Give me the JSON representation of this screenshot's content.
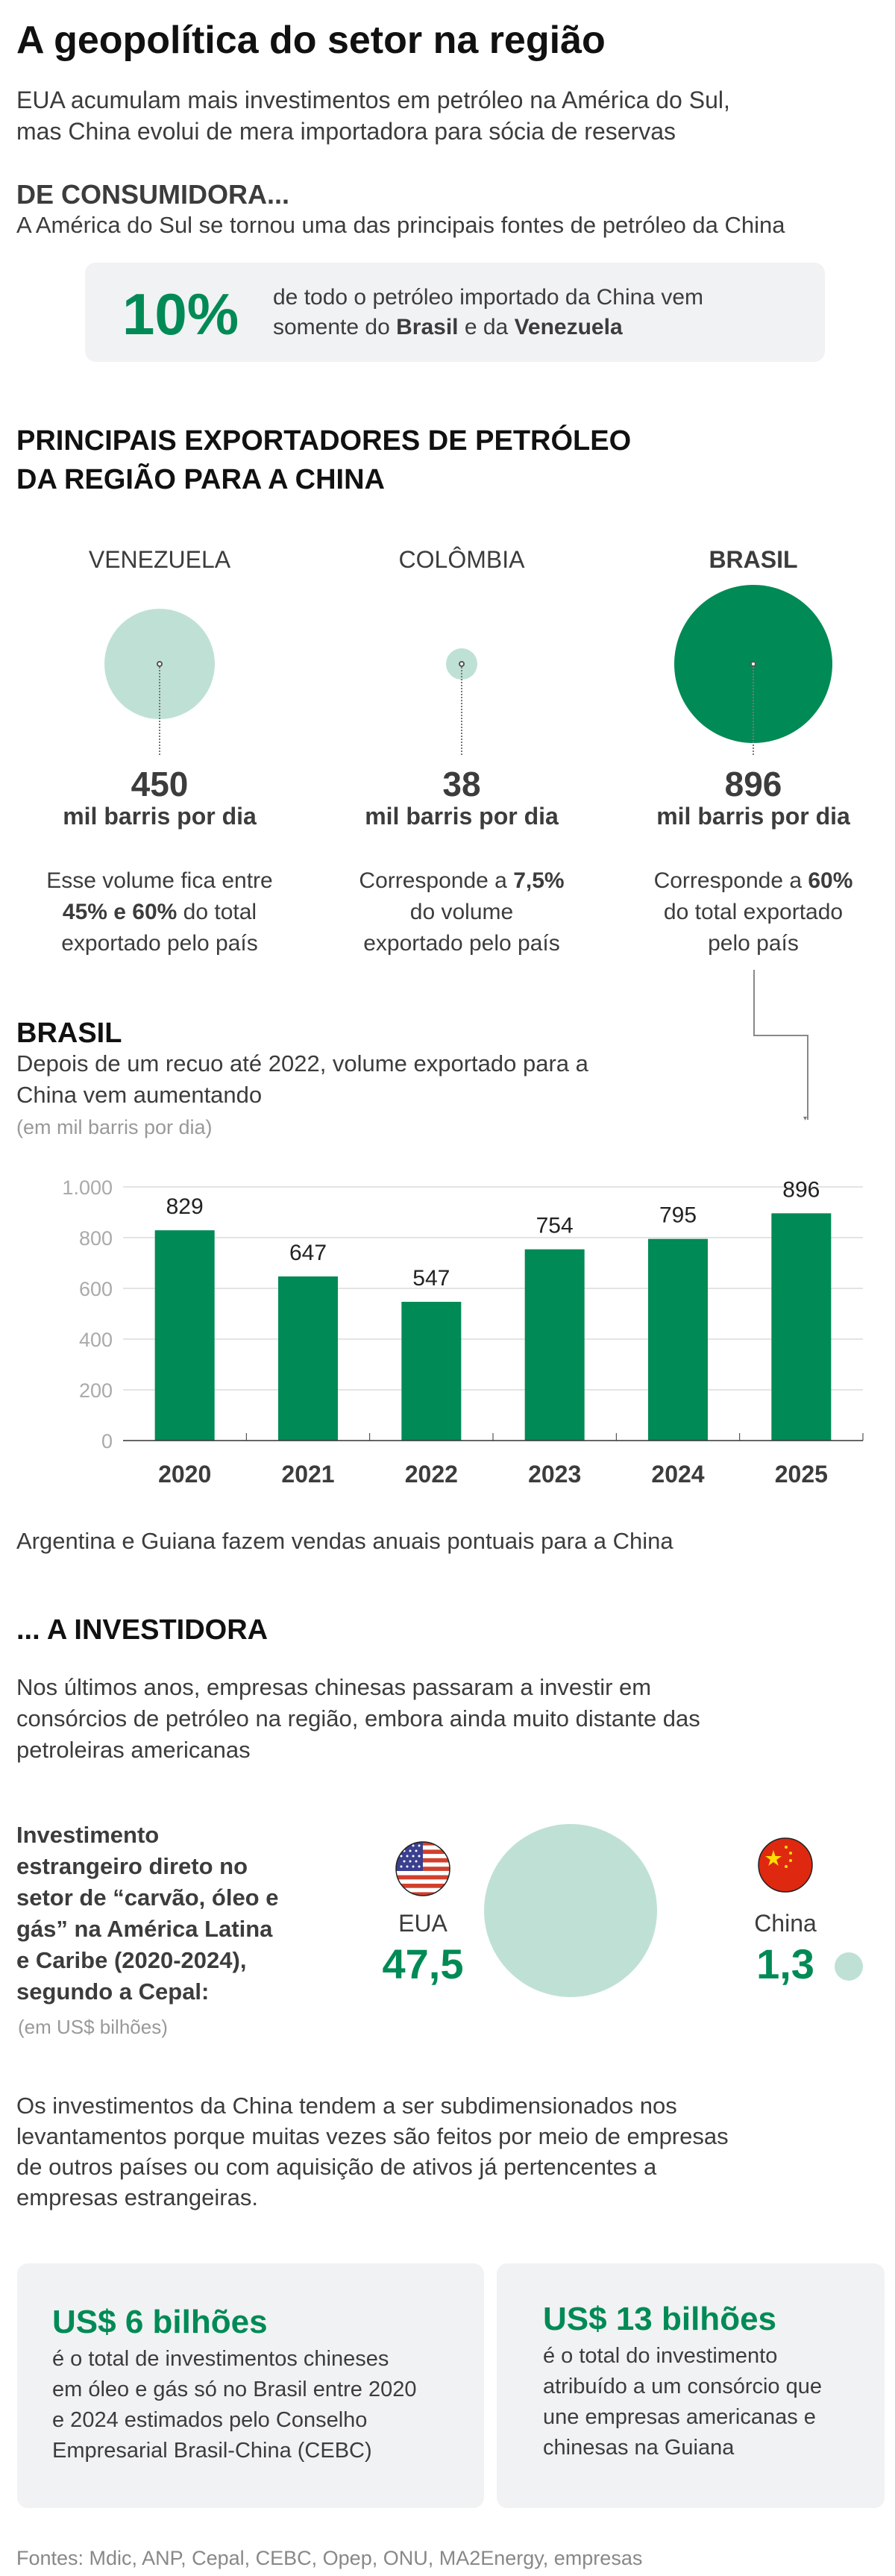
{
  "header": {
    "title": "A geopolítica do setor na região",
    "subtitle_lines": [
      "EUA acumulam mais investimentos em petróleo na América do Sul,",
      "mas China evolui de mera importadora para sócia de reservas"
    ]
  },
  "consumer": {
    "heading": "DE CONSUMIDORA...",
    "text": "A América do Sul se tornou uma das principais fontes de petróleo da China",
    "highlight": {
      "value": "10%",
      "line1": "de todo o petróleo importado da China vem",
      "line2_pre": "somente do ",
      "line2_b1": "Brasil",
      "line2_mid": " e da ",
      "line2_b2": "Venezuela"
    }
  },
  "exporters": {
    "heading_lines": [
      "PRINCIPAIS EXPORTADORES DE PETRÓLEO",
      "DA REGIÃO PARA A CHINA"
    ],
    "unit": "mil barris por dia",
    "items": [
      {
        "country": "VENEZUELA",
        "value": "450",
        "desc": [
          [
            "Esse volume fica entre",
            ""
          ],
          [
            "45% e 60%",
            " do total"
          ],
          [
            "exportado pelo país",
            ""
          ]
        ]
      },
      {
        "country": "COLÔMBIA",
        "value": "38",
        "desc": [
          [
            "Corresponde a ",
            "7,5%"
          ],
          [
            "do volume",
            ""
          ],
          [
            "exportado pelo país",
            ""
          ]
        ]
      },
      {
        "country": "BRASIL",
        "value": "896",
        "desc": [
          [
            "Corresponde a ",
            "60%"
          ],
          [
            "do total exportado",
            ""
          ],
          [
            "pelo país",
            ""
          ]
        ]
      }
    ]
  },
  "brasil": {
    "heading": "BRASIL",
    "subtitle_lines": [
      "Depois de um recuo até 2022, volume exportado para a",
      "China vem aumentando"
    ],
    "unit": "(em mil barris por dia)"
  },
  "chart_data": {
    "type": "bar",
    "categories": [
      "2020",
      "2021",
      "2022",
      "2023",
      "2024",
      "2025"
    ],
    "values": [
      829,
      647,
      547,
      754,
      795,
      896
    ],
    "value_labels": [
      "829",
      "647",
      "547",
      "754",
      "795",
      "896"
    ],
    "ylim": [
      0,
      1000
    ],
    "yticks": [
      0,
      200,
      400,
      600,
      800,
      1000
    ],
    "ytick_labels": [
      "0",
      "200",
      "400",
      "600",
      "800",
      "1.000"
    ],
    "grid": true,
    "bar_color": "#008a56",
    "ylabel": "(em mil barris por dia)"
  },
  "note": "Argentina e Guiana fazem vendas anuais pontuais para a China",
  "investor": {
    "heading": "... A INVESTIDORA",
    "text_lines": [
      "Nos últimos anos, empresas chinesas passaram a investir em",
      "consórcios de petróleo na região, embora ainda muito distante das",
      "petroleiras americanas"
    ],
    "fdi_label_lines": [
      "Investimento",
      "estrangeiro direto no",
      "setor de “carvão, óleo e",
      "gás” na América Latina",
      "e Caribe (2020-2024),",
      "segundo a Cepal:"
    ],
    "fdi_unit": "(em US$ bilhões)",
    "countries": [
      {
        "name": "EUA",
        "value": "47,5",
        "flag": "us-flag-icon"
      },
      {
        "name": "China",
        "value": "1,3",
        "flag": "china-flag-icon"
      }
    ],
    "note_lines": [
      "Os investimentos da China tendem a ser subdimensionados nos",
      "levantamentos porque muitas vezes são feitos por meio de empresas",
      "de outros países ou com aquisição de ativos já pertencentes a",
      "empresas estrangeiras."
    ],
    "cards": [
      {
        "value": "US$ 6 bilhões",
        "lines": [
          "é o total de investimentos chineses",
          "em óleo e gás só no Brasil entre 2020",
          "e 2024 estimados pelo Conselho",
          "Empresarial Brasil-China (CEBC)"
        ]
      },
      {
        "value": "US$ 13 bilhões",
        "lines": [
          "é o total do investimento",
          "atribuído a um consórcio que",
          "une empresas americanas e",
          "chinesas na Guiana"
        ]
      }
    ]
  },
  "sources": "Fontes: Mdic, ANP, Cepal, CEBC, Opep, ONU, MA2Energy, empresas",
  "colors": {
    "green": "#008a56",
    "light_green": "#bfe1d5",
    "box_bg": "#f1f2f3"
  }
}
